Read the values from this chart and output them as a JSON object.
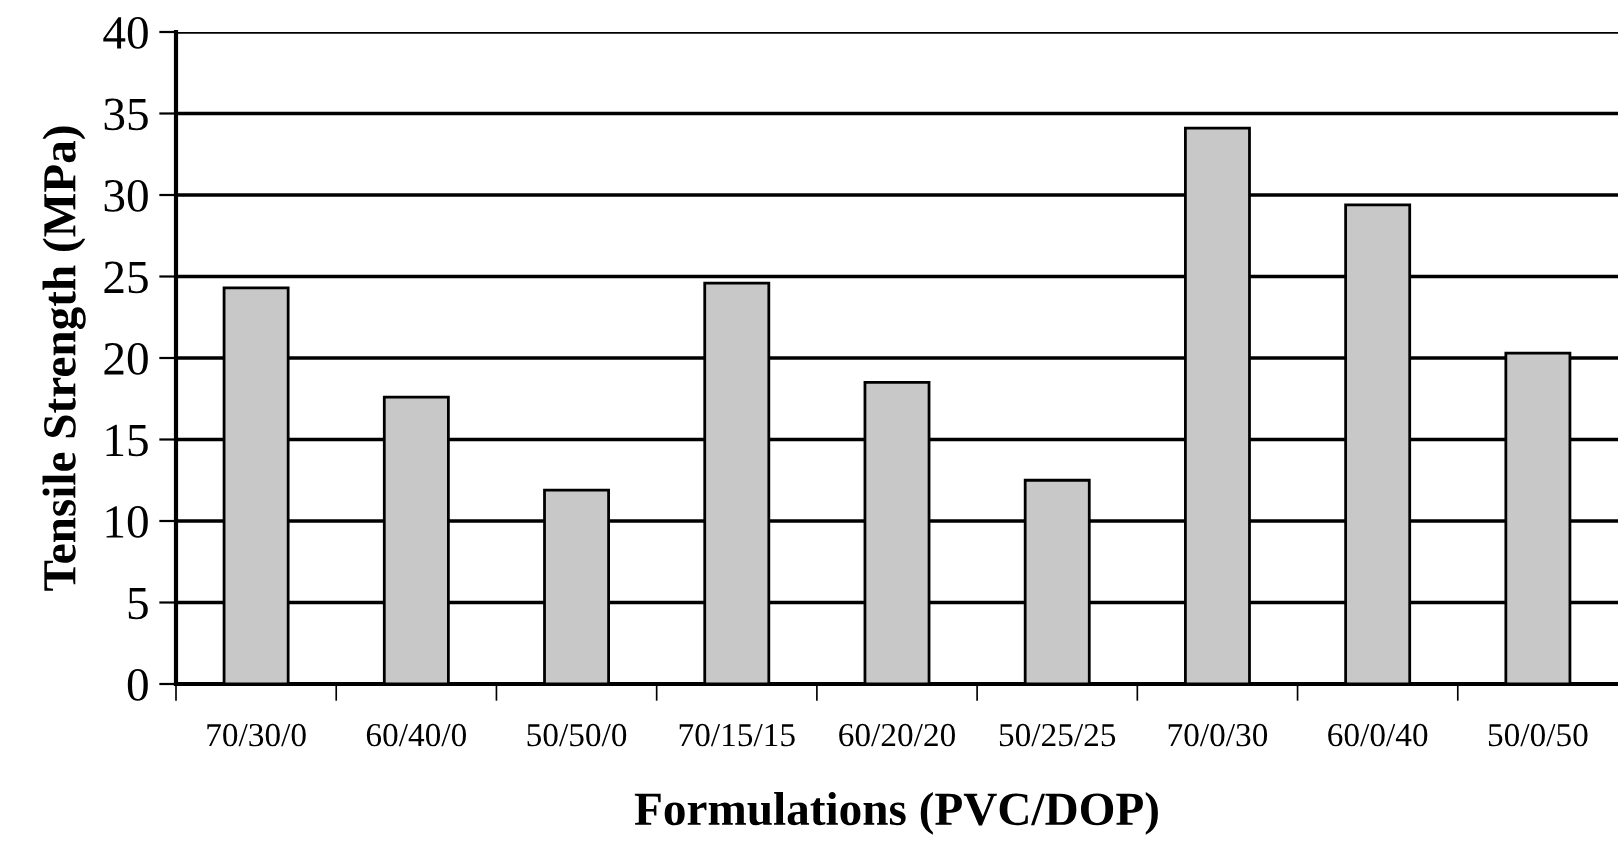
{
  "chart_data": {
    "type": "bar",
    "categories": [
      "70/30/0",
      "60/40/0",
      "50/50/0",
      "70/15/15",
      "60/20/20",
      "50/25/25",
      "70/0/30",
      "60/0/40",
      "50/0/50"
    ],
    "values": [
      24.3,
      17.6,
      11.9,
      24.6,
      18.5,
      12.5,
      34.1,
      29.4,
      20.3
    ],
    "color": "#c8c8c8",
    "xlabel": "Formulations (PVC/DOP)",
    "ylabel": "Tensile Strength (MPa)",
    "ylim": [
      0,
      40
    ],
    "yticks": [
      0,
      5,
      10,
      15,
      20,
      25,
      30,
      35,
      40
    ],
    "grid": "y",
    "legend": false
  }
}
